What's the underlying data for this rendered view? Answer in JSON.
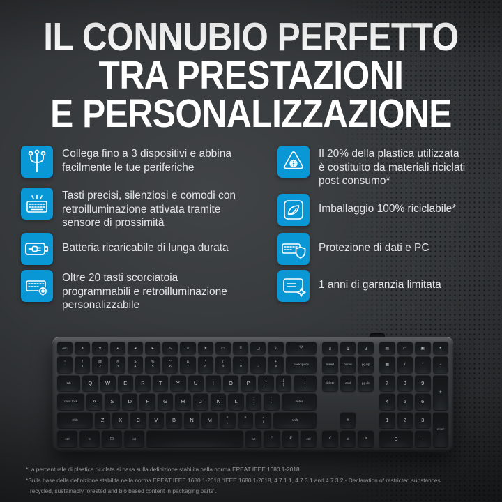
{
  "title": {
    "line1": "IL CONNUBIO PERFETTO",
    "line2": "TRA PRESTAZIONI",
    "line3": "E PERSONALIZZAZIONE"
  },
  "features": {
    "left": [
      {
        "icon": "multi-device-icon",
        "text": "Collega fino a 3 dispositivi e abbina\nfacilmente le tue periferiche"
      },
      {
        "icon": "backlit-keyboard-icon",
        "text": "Tasti precisi, silenziosi e comodi con\nretroilluminazione attivata tramite\nsensore di prossimità"
      },
      {
        "icon": "battery-icon",
        "text": "Batteria ricaricabile di lunga durata"
      },
      {
        "icon": "shortcut-keys-icon",
        "text": "Oltre 20 tasti scorciatoia\nprogrammabili e retroilluminazione\npersonalizzabile"
      }
    ],
    "right": [
      {
        "icon": "recycled-plastic-icon",
        "text": "Il 20% della plastica utilizzata\nè costituito da materiali riciclati\npost consumo*"
      },
      {
        "icon": "recyclable-packaging-icon",
        "text": "Imballaggio 100% riciclabile*"
      },
      {
        "icon": "security-icon",
        "text": "Protezione di dati e PC"
      },
      {
        "icon": "warranty-icon",
        "text": "1 anni di garanzia limitata"
      }
    ]
  },
  "footnotes": {
    "line1": "*La percentuale di plastica riciclata si basa sulla definizione stabilita nella norma EPEAT IEEE 1680.1-2018.",
    "line2": "*Sulla base della definizione stabilita nella norma EPEAT IEEE 1680.1-2018 “IEEE 1680.1-2018, 4.7.1.1, 4.7.3.1 and 4.7.3.2 - Declaration of restricted substances",
    "line3": "recycled, sustainably forested and bio based content in packaging parts”."
  },
  "colors": {
    "accent_blue": "#0A97D5",
    "background_dark": "#2B2D2F",
    "title_white": "#FFFFFF",
    "feature_text": "#E2E4E5"
  },
  "keyboard": {
    "main_rows": [
      [
        {
          "l": "esc",
          "w": 1
        },
        {
          "l": "✕",
          "w": 1
        },
        {
          "l": "▾",
          "w": 1
        },
        {
          "l": "▴",
          "w": 1
        },
        {
          "l": "◂",
          "w": 1
        },
        {
          "l": "▸",
          "w": 1
        },
        {
          "l": "▹",
          "w": 1
        },
        {
          "l": "☼",
          "w": 1
        },
        {
          "l": "☀",
          "w": 1
        },
        {
          "l": "▭",
          "w": 1
        },
        {
          "l": "≡",
          "w": 1
        },
        {
          "l": "▢",
          "w": 1
        },
        {
          "l": "♪",
          "w": 1
        },
        {
          "l": "Ψ",
          "w": 2
        }
      ],
      [
        {
          "l": "~\n`",
          "w": 1
        },
        {
          "l": "!\n1",
          "w": 1
        },
        {
          "l": "@\n2",
          "w": 1
        },
        {
          "l": "#\n3",
          "w": 1
        },
        {
          "l": "$\n4",
          "w": 1
        },
        {
          "l": "%\n5",
          "w": 1
        },
        {
          "l": "^\n6",
          "w": 1
        },
        {
          "l": "&\n7",
          "w": 1
        },
        {
          "l": "*\n8",
          "w": 1
        },
        {
          "l": "(\n9",
          "w": 1
        },
        {
          "l": ")\n0",
          "w": 1
        },
        {
          "l": "_\n-",
          "w": 1
        },
        {
          "l": "+\n=",
          "w": 1
        },
        {
          "l": "backspace",
          "w": 2
        }
      ],
      [
        {
          "l": "tab",
          "w": 1.5
        },
        {
          "l": "Q",
          "w": 1
        },
        {
          "l": "W",
          "w": 1
        },
        {
          "l": "E",
          "w": 1
        },
        {
          "l": "R",
          "w": 1
        },
        {
          "l": "T",
          "w": 1
        },
        {
          "l": "Y",
          "w": 1
        },
        {
          "l": "U",
          "w": 1
        },
        {
          "l": "I",
          "w": 1
        },
        {
          "l": "O",
          "w": 1
        },
        {
          "l": "P",
          "w": 1
        },
        {
          "l": "{\n[",
          "w": 1
        },
        {
          "l": "}\n]",
          "w": 1
        },
        {
          "l": "|\n\\",
          "w": 1.5
        }
      ],
      [
        {
          "l": "caps lock",
          "w": 1.75
        },
        {
          "l": "A",
          "w": 1
        },
        {
          "l": "S",
          "w": 1
        },
        {
          "l": "D",
          "w": 1
        },
        {
          "l": "F",
          "w": 1
        },
        {
          "l": "G",
          "w": 1
        },
        {
          "l": "H",
          "w": 1
        },
        {
          "l": "J",
          "w": 1
        },
        {
          "l": "K",
          "w": 1
        },
        {
          "l": "L",
          "w": 1
        },
        {
          "l": ":\n;",
          "w": 1
        },
        {
          "l": "\"\n'",
          "w": 1
        },
        {
          "l": "enter",
          "w": 2.25
        }
      ],
      [
        {
          "l": "shift",
          "w": 2.25
        },
        {
          "l": "Z",
          "w": 1
        },
        {
          "l": "X",
          "w": 1
        },
        {
          "l": "C",
          "w": 1
        },
        {
          "l": "V",
          "w": 1
        },
        {
          "l": "B",
          "w": 1
        },
        {
          "l": "N",
          "w": 1
        },
        {
          "l": "M",
          "w": 1
        },
        {
          "l": "<\n,",
          "w": 1
        },
        {
          "l": ">\n.",
          "w": 1
        },
        {
          "l": "?\n/",
          "w": 1
        },
        {
          "l": "shift",
          "w": 2.75
        }
      ],
      [
        {
          "l": "ctrl",
          "w": 1.25
        },
        {
          "l": "fn",
          "w": 1.25
        },
        {
          "l": "⊞",
          "w": 1.25
        },
        {
          "l": "alt",
          "w": 1.25
        },
        {
          "l": "",
          "w": 6
        },
        {
          "l": "alt",
          "w": 1
        },
        {
          "l": "☺",
          "w": 1
        },
        {
          "l": "Ψ",
          "w": 1
        },
        {
          "l": "ctrl",
          "w": 1
        }
      ]
    ],
    "nav": [
      {
        "l": "▯"
      },
      {
        "l": "1"
      },
      {
        "l": "2"
      },
      {
        "l": "insert"
      },
      {
        "l": "home"
      },
      {
        "l": "pg up"
      },
      {
        "l": "delete"
      },
      {
        "l": "end"
      },
      {
        "l": "pg dn"
      },
      {
        "blank": true
      },
      {
        "blank": true
      },
      {
        "blank": true
      },
      {
        "blank": true
      },
      {
        "l": "∧"
      },
      {
        "blank": true
      },
      {
        "l": "<"
      },
      {
        "l": "∨"
      },
      {
        "l": ">"
      }
    ],
    "num": [
      {
        "l": "▤"
      },
      {
        "l": "▭"
      },
      {
        "l": "▣"
      },
      {
        "l": "●"
      },
      {
        "l": "▦"
      },
      {
        "l": "/"
      },
      {
        "l": "*"
      },
      {
        "l": "-"
      },
      {
        "l": "7"
      },
      {
        "l": "8"
      },
      {
        "l": "9"
      },
      {
        "l": "+",
        "rs": 2
      },
      {
        "l": "4"
      },
      {
        "l": "5"
      },
      {
        "l": "6"
      },
      {
        "l": "1"
      },
      {
        "l": "2"
      },
      {
        "l": "3"
      },
      {
        "l": "enter",
        "rs": 2
      },
      {
        "l": "0",
        "cs": 2
      },
      {
        "l": "."
      }
    ]
  }
}
